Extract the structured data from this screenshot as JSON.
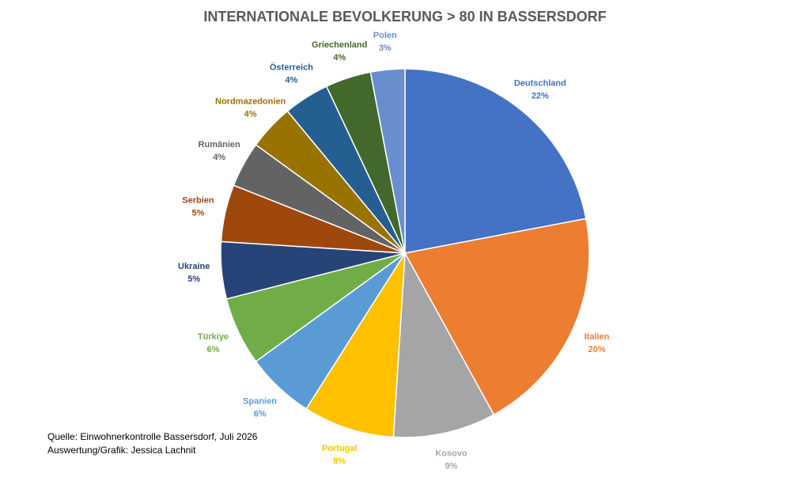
{
  "chart_data": {
    "type": "pie",
    "title": "INTERNATIONALE BEVOLKERUNG > 80 IN BASSERSDORF",
    "categories": [
      "Deutschland",
      "Italien",
      "Kosovo",
      "Portugal",
      "Spanien",
      "Türkiye",
      "Ukraine",
      "Serbien",
      "Rumänien",
      "Nordmazedonien",
      "Österreich",
      "Griechenland",
      "Polen"
    ],
    "values": [
      22,
      20,
      9,
      8,
      6,
      6,
      5,
      5,
      4,
      4,
      4,
      4,
      3
    ],
    "value_labels": [
      "22%",
      "20%",
      "9%",
      "8%",
      "6%",
      "6%",
      "5%",
      "5%",
      "4%",
      "4%",
      "4%",
      "4%",
      "3%"
    ],
    "colors": [
      "#4472c4",
      "#ed7d31",
      "#a5a5a5",
      "#ffc000",
      "#5b9bd5",
      "#70ad47",
      "#264478",
      "#9e480e",
      "#636363",
      "#997300",
      "#255e91",
      "#43682b",
      "#698ed0"
    ],
    "notes": [
      "Quelle: Einwohnerkontrolle Bassersdorf, Juli 2026",
      "Auswertung/Grafik: Jessica Lachnit"
    ]
  }
}
